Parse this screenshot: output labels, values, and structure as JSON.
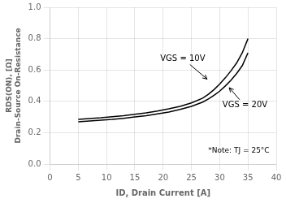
{
  "chart_data": {
    "type": "line",
    "xlabel": "ID, Drain Current [A]",
    "ylabel": [
      "RDS(ON), [Ω]",
      "Drain-Source On-Resistance"
    ],
    "xlim": [
      0,
      40
    ],
    "ylim": [
      0.0,
      1.0
    ],
    "xticks": [
      0,
      5,
      10,
      15,
      20,
      25,
      30,
      35,
      40
    ],
    "yticks": [
      {
        "value": 0.0,
        "label": "0.0"
      },
      0.2,
      0.4,
      0.6,
      0.8,
      {
        "value": 1.0,
        "label": "1.0"
      }
    ],
    "grid": true,
    "x": [
      5,
      7,
      9,
      11,
      13,
      15,
      17,
      19,
      21,
      23,
      25,
      27,
      28,
      29,
      30,
      31,
      32,
      33,
      34,
      35
    ],
    "series": [
      {
        "values": [
          0.285,
          0.29,
          0.295,
          0.302,
          0.308,
          0.317,
          0.326,
          0.338,
          0.352,
          0.368,
          0.39,
          0.42,
          0.445,
          0.475,
          0.51,
          0.55,
          0.595,
          0.645,
          0.71,
          0.8
        ],
        "color": "black"
      },
      {
        "values": [
          0.27,
          0.275,
          0.28,
          0.285,
          0.292,
          0.3,
          0.308,
          0.32,
          0.332,
          0.348,
          0.368,
          0.395,
          0.415,
          0.438,
          0.465,
          0.498,
          0.535,
          0.578,
          0.628,
          0.71
        ],
        "color": "black"
      }
    ],
    "annotations": [
      {
        "text": "VGS = 10V",
        "xy": [
          28.0,
          0.535
        ],
        "xytext": [
          19.5,
          0.645
        ]
      },
      {
        "text": "VGS = 20V",
        "xy": [
          31.5,
          0.495
        ],
        "xytext": [
          30.5,
          0.4
        ]
      }
    ],
    "note": "*Note: TJ = 25°C"
  }
}
